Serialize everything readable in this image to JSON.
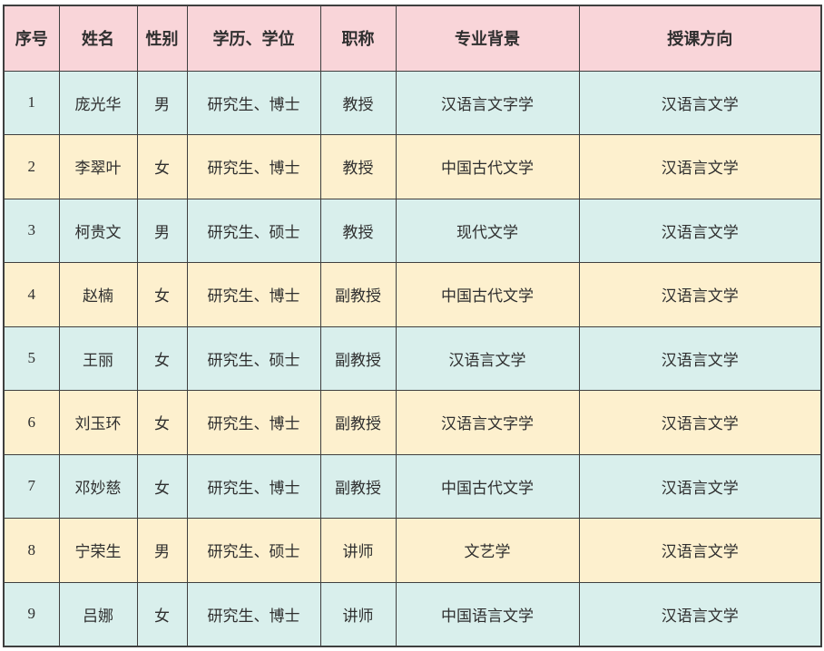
{
  "table": {
    "columns": [
      {
        "key": "index",
        "label": "序号"
      },
      {
        "key": "name",
        "label": "姓名"
      },
      {
        "key": "gender",
        "label": "性别"
      },
      {
        "key": "education",
        "label": "学历、学位"
      },
      {
        "key": "title",
        "label": "职称"
      },
      {
        "key": "background",
        "label": "专业背景"
      },
      {
        "key": "direction",
        "label": "授课方向"
      }
    ],
    "rows": [
      [
        "1",
        "庞光华",
        "男",
        "研究生、博士",
        "教授",
        "汉语言文字学",
        "汉语言文学"
      ],
      [
        "2",
        "李翠叶",
        "女",
        "研究生、博士",
        "教授",
        "中国古代文学",
        "汉语言文学"
      ],
      [
        "3",
        "柯贵文",
        "男",
        "研究生、硕士",
        "教授",
        "现代文学",
        "汉语言文学"
      ],
      [
        "4",
        "赵楠",
        "女",
        "研究生、博士",
        "副教授",
        "中国古代文学",
        "汉语言文学"
      ],
      [
        "5",
        "王丽",
        "女",
        "研究生、硕士",
        "副教授",
        "汉语言文学",
        "汉语言文学"
      ],
      [
        "6",
        "刘玉环",
        "女",
        "研究生、博士",
        "副教授",
        "汉语言文字学",
        "汉语言文学"
      ],
      [
        "7",
        "邓妙慈",
        "女",
        "研究生、博士",
        "副教授",
        "中国古代文学",
        "汉语言文学"
      ],
      [
        "8",
        "宁荣生",
        "男",
        "研究生、硕士",
        "讲师",
        "文艺学",
        "汉语言文学"
      ],
      [
        "9",
        "吕娜",
        "女",
        "研究生、博士",
        "讲师",
        "中国语言文学",
        "汉语言文学"
      ]
    ],
    "colors": {
      "header_bg": "#f9d5d9",
      "row_even_bg": "#d9efec",
      "row_odd_bg": "#fdf0ce",
      "border": "#3f3f3f",
      "text": "#2f2f2f"
    }
  }
}
